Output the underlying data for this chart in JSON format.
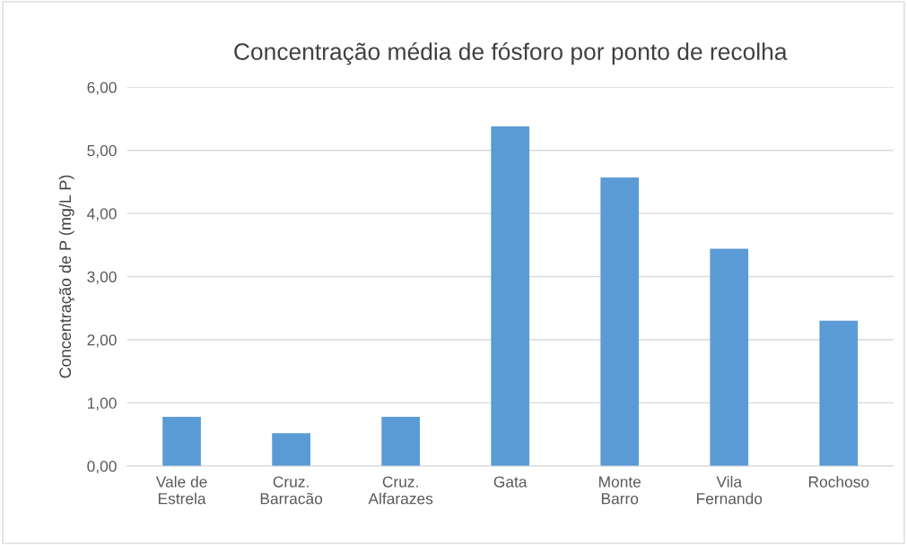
{
  "chart_data": {
    "type": "bar",
    "title": "Concentração média de fósforo por ponto de recolha",
    "ylabel": "Concentração de P (mg/L P)",
    "categories": [
      "Vale de\nEstrela",
      "Cruz.\nBarracão",
      "Cruz.\nAlfarazes",
      "Gata",
      "Monte\nBarro",
      "Vila\nFernando",
      "Rochoso"
    ],
    "values": [
      0.78,
      0.52,
      0.78,
      5.38,
      4.57,
      3.44,
      2.3
    ],
    "color": "#5b9bd5",
    "ylim": [
      0,
      6
    ],
    "yticks": [
      {
        "value": 0,
        "label": "0,00"
      },
      {
        "value": 1,
        "label": "1,00"
      },
      {
        "value": 2,
        "label": "2,00"
      },
      {
        "value": 3,
        "label": "3,00"
      },
      {
        "value": 4,
        "label": "4,00"
      },
      {
        "value": 5,
        "label": "5,00"
      },
      {
        "value": 6,
        "label": "6,00"
      }
    ],
    "grid": "y"
  }
}
